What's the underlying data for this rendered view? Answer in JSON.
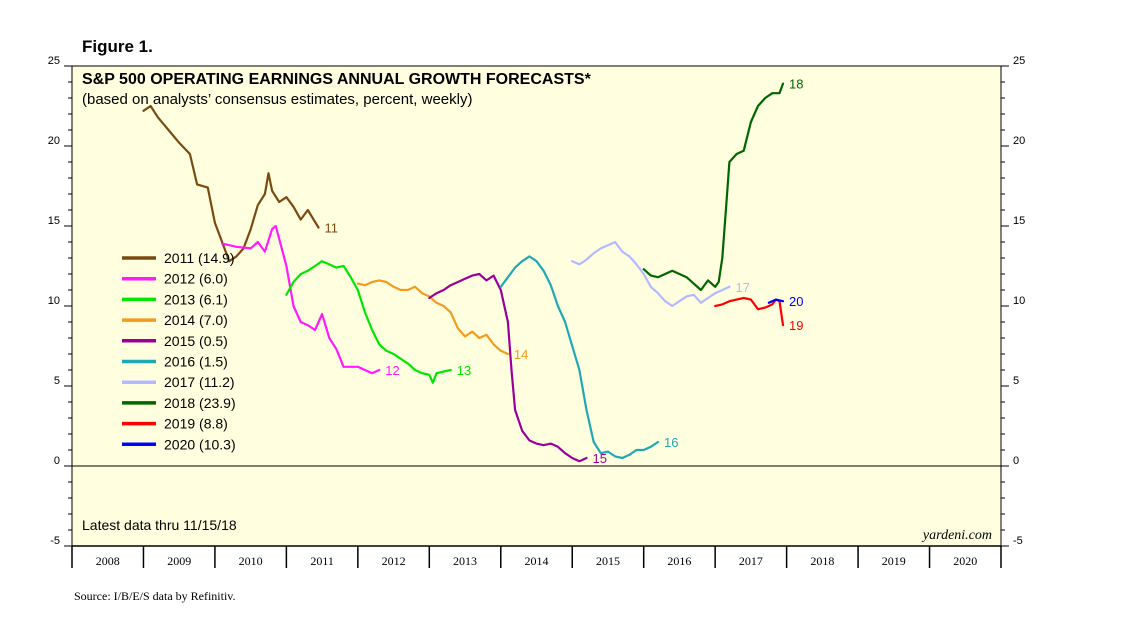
{
  "figure_label": "Figure 1.",
  "source": "Source: I/B/E/S data by Refinitiv.",
  "chart_data": {
    "type": "line",
    "title": "S&P 500 OPERATING EARNINGS ANNUAL GROWTH FORECASTS*",
    "subtitle": "(based on analysts’ consensus estimates, percent, weekly)",
    "note": "Latest data thru 11/15/18",
    "brand": "yardeni.com",
    "xlim": [
      2008,
      2021
    ],
    "ylim": [
      -5,
      25
    ],
    "y_major_ticks": [
      -5,
      0,
      5,
      10,
      15,
      20,
      25
    ],
    "x_categories": [
      "2008",
      "2009",
      "2010",
      "2011",
      "2012",
      "2013",
      "2014",
      "2015",
      "2016",
      "2017",
      "2018",
      "2019",
      "2020"
    ],
    "zero_line": true,
    "grid": false,
    "background": "#ffffe0",
    "legend_position": "left-center",
    "series": [
      {
        "name": "2011 (14.9)",
        "end_label": "11",
        "color": "#7b4a10",
        "points": [
          [
            2009.0,
            22.2
          ],
          [
            2009.1,
            22.5
          ],
          [
            2009.2,
            21.8
          ],
          [
            2009.35,
            21.0
          ],
          [
            2009.5,
            20.2
          ],
          [
            2009.65,
            19.5
          ],
          [
            2009.75,
            17.6
          ],
          [
            2009.9,
            17.4
          ],
          [
            2010.0,
            15.2
          ],
          [
            2010.1,
            14.0
          ],
          [
            2010.2,
            12.8
          ],
          [
            2010.3,
            13.1
          ],
          [
            2010.4,
            13.6
          ],
          [
            2010.5,
            14.8
          ],
          [
            2010.6,
            16.3
          ],
          [
            2010.7,
            17.0
          ],
          [
            2010.75,
            18.3
          ],
          [
            2010.8,
            17.2
          ],
          [
            2010.9,
            16.5
          ],
          [
            2011.0,
            16.8
          ],
          [
            2011.1,
            16.2
          ],
          [
            2011.2,
            15.4
          ],
          [
            2011.3,
            16.0
          ],
          [
            2011.45,
            14.9
          ]
        ]
      },
      {
        "name": "2012 (6.0)",
        "end_label": "12",
        "color": "#ff1aff",
        "points": [
          [
            2010.1,
            13.9
          ],
          [
            2010.3,
            13.7
          ],
          [
            2010.5,
            13.6
          ],
          [
            2010.6,
            14.0
          ],
          [
            2010.7,
            13.4
          ],
          [
            2010.8,
            14.8
          ],
          [
            2010.85,
            15.0
          ],
          [
            2010.9,
            14.2
          ],
          [
            2011.0,
            12.5
          ],
          [
            2011.1,
            10.0
          ],
          [
            2011.2,
            9.0
          ],
          [
            2011.3,
            8.8
          ],
          [
            2011.4,
            8.5
          ],
          [
            2011.5,
            9.5
          ],
          [
            2011.6,
            8.0
          ],
          [
            2011.7,
            7.3
          ],
          [
            2011.8,
            6.2
          ],
          [
            2012.0,
            6.2
          ],
          [
            2012.1,
            6.0
          ],
          [
            2012.2,
            5.8
          ],
          [
            2012.3,
            6.0
          ]
        ]
      },
      {
        "name": "2013 (6.1)",
        "end_label": "13",
        "color": "#00e600",
        "points": [
          [
            2011.0,
            10.7
          ],
          [
            2011.1,
            11.5
          ],
          [
            2011.2,
            12.0
          ],
          [
            2011.3,
            12.2
          ],
          [
            2011.4,
            12.5
          ],
          [
            2011.5,
            12.8
          ],
          [
            2011.6,
            12.6
          ],
          [
            2011.7,
            12.4
          ],
          [
            2011.8,
            12.5
          ],
          [
            2011.9,
            11.8
          ],
          [
            2012.0,
            11.0
          ],
          [
            2012.1,
            9.6
          ],
          [
            2012.2,
            8.5
          ],
          [
            2012.3,
            7.6
          ],
          [
            2012.4,
            7.2
          ],
          [
            2012.5,
            7.0
          ],
          [
            2012.6,
            6.7
          ],
          [
            2012.7,
            6.4
          ],
          [
            2012.8,
            6.0
          ],
          [
            2012.9,
            5.8
          ],
          [
            2013.0,
            5.7
          ],
          [
            2013.05,
            5.2
          ],
          [
            2013.1,
            5.8
          ],
          [
            2013.2,
            5.9
          ],
          [
            2013.3,
            6.0
          ]
        ]
      },
      {
        "name": "2014 (7.0)",
        "end_label": "14",
        "color": "#f29b1f",
        "points": [
          [
            2012.0,
            11.4
          ],
          [
            2012.1,
            11.3
          ],
          [
            2012.2,
            11.5
          ],
          [
            2012.3,
            11.6
          ],
          [
            2012.4,
            11.5
          ],
          [
            2012.5,
            11.2
          ],
          [
            2012.6,
            11.0
          ],
          [
            2012.7,
            11.0
          ],
          [
            2012.8,
            11.2
          ],
          [
            2012.9,
            10.8
          ],
          [
            2013.0,
            10.6
          ],
          [
            2013.1,
            10.2
          ],
          [
            2013.2,
            10.0
          ],
          [
            2013.3,
            9.6
          ],
          [
            2013.4,
            8.6
          ],
          [
            2013.5,
            8.1
          ],
          [
            2013.6,
            8.4
          ],
          [
            2013.7,
            8.0
          ],
          [
            2013.8,
            8.2
          ],
          [
            2013.9,
            7.6
          ],
          [
            2014.0,
            7.2
          ],
          [
            2014.1,
            7.0
          ]
        ]
      },
      {
        "name": "2015 (0.5)",
        "end_label": "15",
        "color": "#990099",
        "points": [
          [
            2013.0,
            10.5
          ],
          [
            2013.1,
            10.8
          ],
          [
            2013.2,
            11.0
          ],
          [
            2013.3,
            11.3
          ],
          [
            2013.4,
            11.5
          ],
          [
            2013.5,
            11.7
          ],
          [
            2013.6,
            11.9
          ],
          [
            2013.7,
            12.0
          ],
          [
            2013.8,
            11.6
          ],
          [
            2013.9,
            11.9
          ],
          [
            2014.0,
            11.0
          ],
          [
            2014.1,
            9.0
          ],
          [
            2014.15,
            6.0
          ],
          [
            2014.2,
            3.5
          ],
          [
            2014.3,
            2.2
          ],
          [
            2014.4,
            1.6
          ],
          [
            2014.5,
            1.4
          ],
          [
            2014.6,
            1.3
          ],
          [
            2014.7,
            1.4
          ],
          [
            2014.8,
            1.2
          ],
          [
            2014.9,
            0.8
          ],
          [
            2015.0,
            0.5
          ],
          [
            2015.1,
            0.3
          ],
          [
            2015.2,
            0.5
          ]
        ]
      },
      {
        "name": "2016 (1.5)",
        "end_label": "16",
        "color": "#1fa8b4",
        "points": [
          [
            2014.0,
            11.2
          ],
          [
            2014.1,
            11.8
          ],
          [
            2014.2,
            12.4
          ],
          [
            2014.3,
            12.8
          ],
          [
            2014.4,
            13.1
          ],
          [
            2014.5,
            12.8
          ],
          [
            2014.6,
            12.2
          ],
          [
            2014.7,
            11.3
          ],
          [
            2014.8,
            10.0
          ],
          [
            2014.9,
            9.0
          ],
          [
            2015.0,
            7.5
          ],
          [
            2015.1,
            6.0
          ],
          [
            2015.2,
            3.5
          ],
          [
            2015.3,
            1.5
          ],
          [
            2015.4,
            0.8
          ],
          [
            2015.5,
            0.9
          ],
          [
            2015.6,
            0.6
          ],
          [
            2015.7,
            0.5
          ],
          [
            2015.8,
            0.7
          ],
          [
            2015.9,
            1.0
          ],
          [
            2016.0,
            1.0
          ],
          [
            2016.1,
            1.2
          ],
          [
            2016.2,
            1.5
          ]
        ]
      },
      {
        "name": "2017 (11.2)",
        "end_label": "17",
        "color": "#b4b8ff",
        "points": [
          [
            2015.0,
            12.8
          ],
          [
            2015.1,
            12.6
          ],
          [
            2015.2,
            12.9
          ],
          [
            2015.3,
            13.3
          ],
          [
            2015.4,
            13.6
          ],
          [
            2015.5,
            13.8
          ],
          [
            2015.6,
            14.0
          ],
          [
            2015.7,
            13.4
          ],
          [
            2015.8,
            13.1
          ],
          [
            2015.9,
            12.6
          ],
          [
            2016.0,
            12.0
          ],
          [
            2016.1,
            11.2
          ],
          [
            2016.2,
            10.8
          ],
          [
            2016.3,
            10.3
          ],
          [
            2016.4,
            10.0
          ],
          [
            2016.5,
            10.3
          ],
          [
            2016.6,
            10.6
          ],
          [
            2016.7,
            10.7
          ],
          [
            2016.8,
            10.2
          ],
          [
            2016.9,
            10.5
          ],
          [
            2017.0,
            10.8
          ],
          [
            2017.1,
            11.0
          ],
          [
            2017.2,
            11.2
          ]
        ]
      },
      {
        "name": "2018 (23.9)",
        "end_label": "18",
        "color": "#006600",
        "points": [
          [
            2016.0,
            12.3
          ],
          [
            2016.1,
            11.9
          ],
          [
            2016.2,
            11.8
          ],
          [
            2016.3,
            12.0
          ],
          [
            2016.4,
            12.2
          ],
          [
            2016.5,
            12.0
          ],
          [
            2016.6,
            11.8
          ],
          [
            2016.7,
            11.4
          ],
          [
            2016.8,
            11.0
          ],
          [
            2016.9,
            11.6
          ],
          [
            2017.0,
            11.2
          ],
          [
            2017.05,
            11.5
          ],
          [
            2017.1,
            13.0
          ],
          [
            2017.15,
            16.0
          ],
          [
            2017.2,
            19.0
          ],
          [
            2017.3,
            19.5
          ],
          [
            2017.4,
            19.7
          ],
          [
            2017.5,
            21.5
          ],
          [
            2017.6,
            22.5
          ],
          [
            2017.7,
            23.0
          ],
          [
            2017.8,
            23.3
          ],
          [
            2017.9,
            23.3
          ],
          [
            2017.95,
            23.9
          ]
        ]
      },
      {
        "name": "2019 (8.8)",
        "end_label": "19",
        "color": "#ff0000",
        "points": [
          [
            2017.0,
            10.0
          ],
          [
            2017.1,
            10.1
          ],
          [
            2017.2,
            10.3
          ],
          [
            2017.3,
            10.4
          ],
          [
            2017.4,
            10.5
          ],
          [
            2017.5,
            10.4
          ],
          [
            2017.6,
            9.8
          ],
          [
            2017.7,
            9.9
          ],
          [
            2017.8,
            10.1
          ],
          [
            2017.85,
            10.4
          ],
          [
            2017.9,
            10.3
          ],
          [
            2017.95,
            8.8
          ]
        ]
      },
      {
        "name": "2020 (10.3)",
        "end_label": "20",
        "color": "#0000ff",
        "points": [
          [
            2017.75,
            10.2
          ],
          [
            2017.85,
            10.4
          ],
          [
            2017.95,
            10.3
          ]
        ]
      }
    ]
  }
}
